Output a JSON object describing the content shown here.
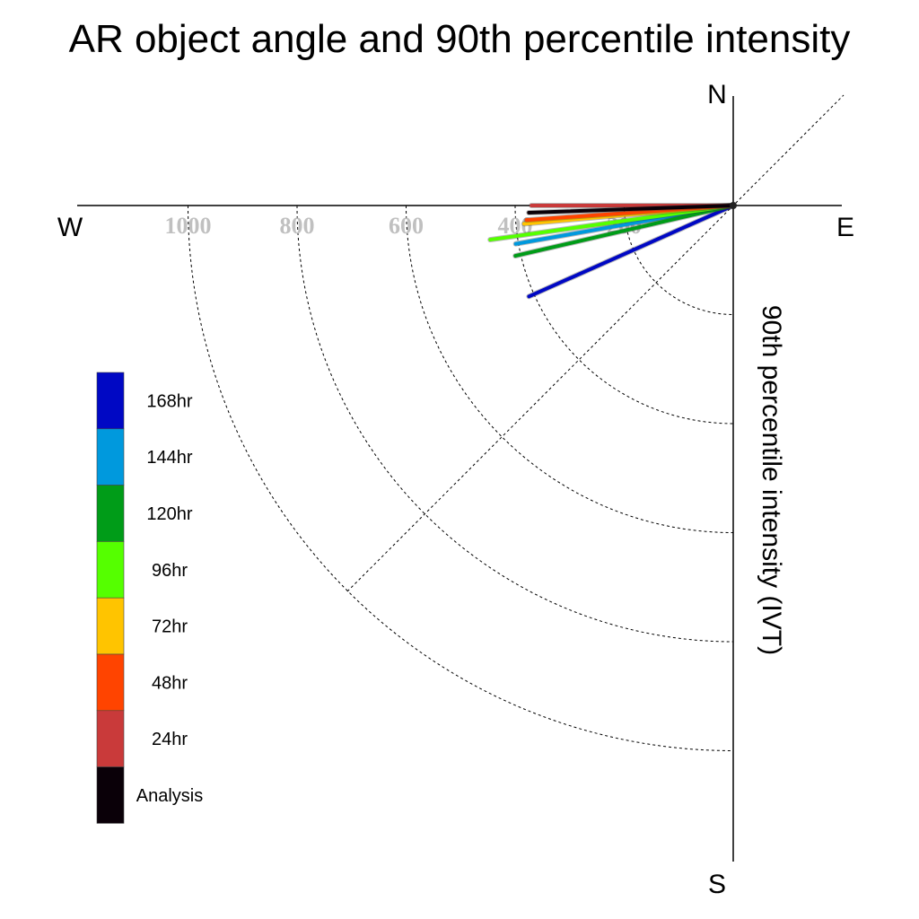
{
  "chart_data": {
    "type": "polar-vector",
    "title": "AR object angle and 90th percentile intensity",
    "ylabel": "90th percentile intensity (IVT)",
    "compass": {
      "north": "N",
      "south": "S",
      "east": "E",
      "west": "W"
    },
    "rlim": [
      0,
      1200
    ],
    "rings": [
      200,
      400,
      600,
      800,
      1000
    ],
    "tick_labels": [
      "1000",
      "800",
      "600",
      "400",
      "200"
    ],
    "grid": true,
    "legend_position": "left",
    "series": [
      {
        "name": "Analysis",
        "color": "#0a0008",
        "angle_deg": 182,
        "intensity": 375
      },
      {
        "name": "24hr",
        "color": "#c93a3a",
        "angle_deg": 180,
        "intensity": 370
      },
      {
        "name": "48hr",
        "color": "#ff4400",
        "angle_deg": 184,
        "intensity": 380
      },
      {
        "name": "72hr",
        "color": "#ffc400",
        "angle_deg": 185,
        "intensity": 385
      },
      {
        "name": "96hr",
        "color": "#55ff00",
        "angle_deg": 188,
        "intensity": 450
      },
      {
        "name": "120hr",
        "color": "#009c18",
        "angle_deg": 193,
        "intensity": 410
      },
      {
        "name": "144hr",
        "color": "#0099dd",
        "angle_deg": 190,
        "intensity": 405
      },
      {
        "name": "168hr",
        "color": "#0008c4",
        "angle_deg": 204,
        "intensity": 410
      }
    ]
  }
}
